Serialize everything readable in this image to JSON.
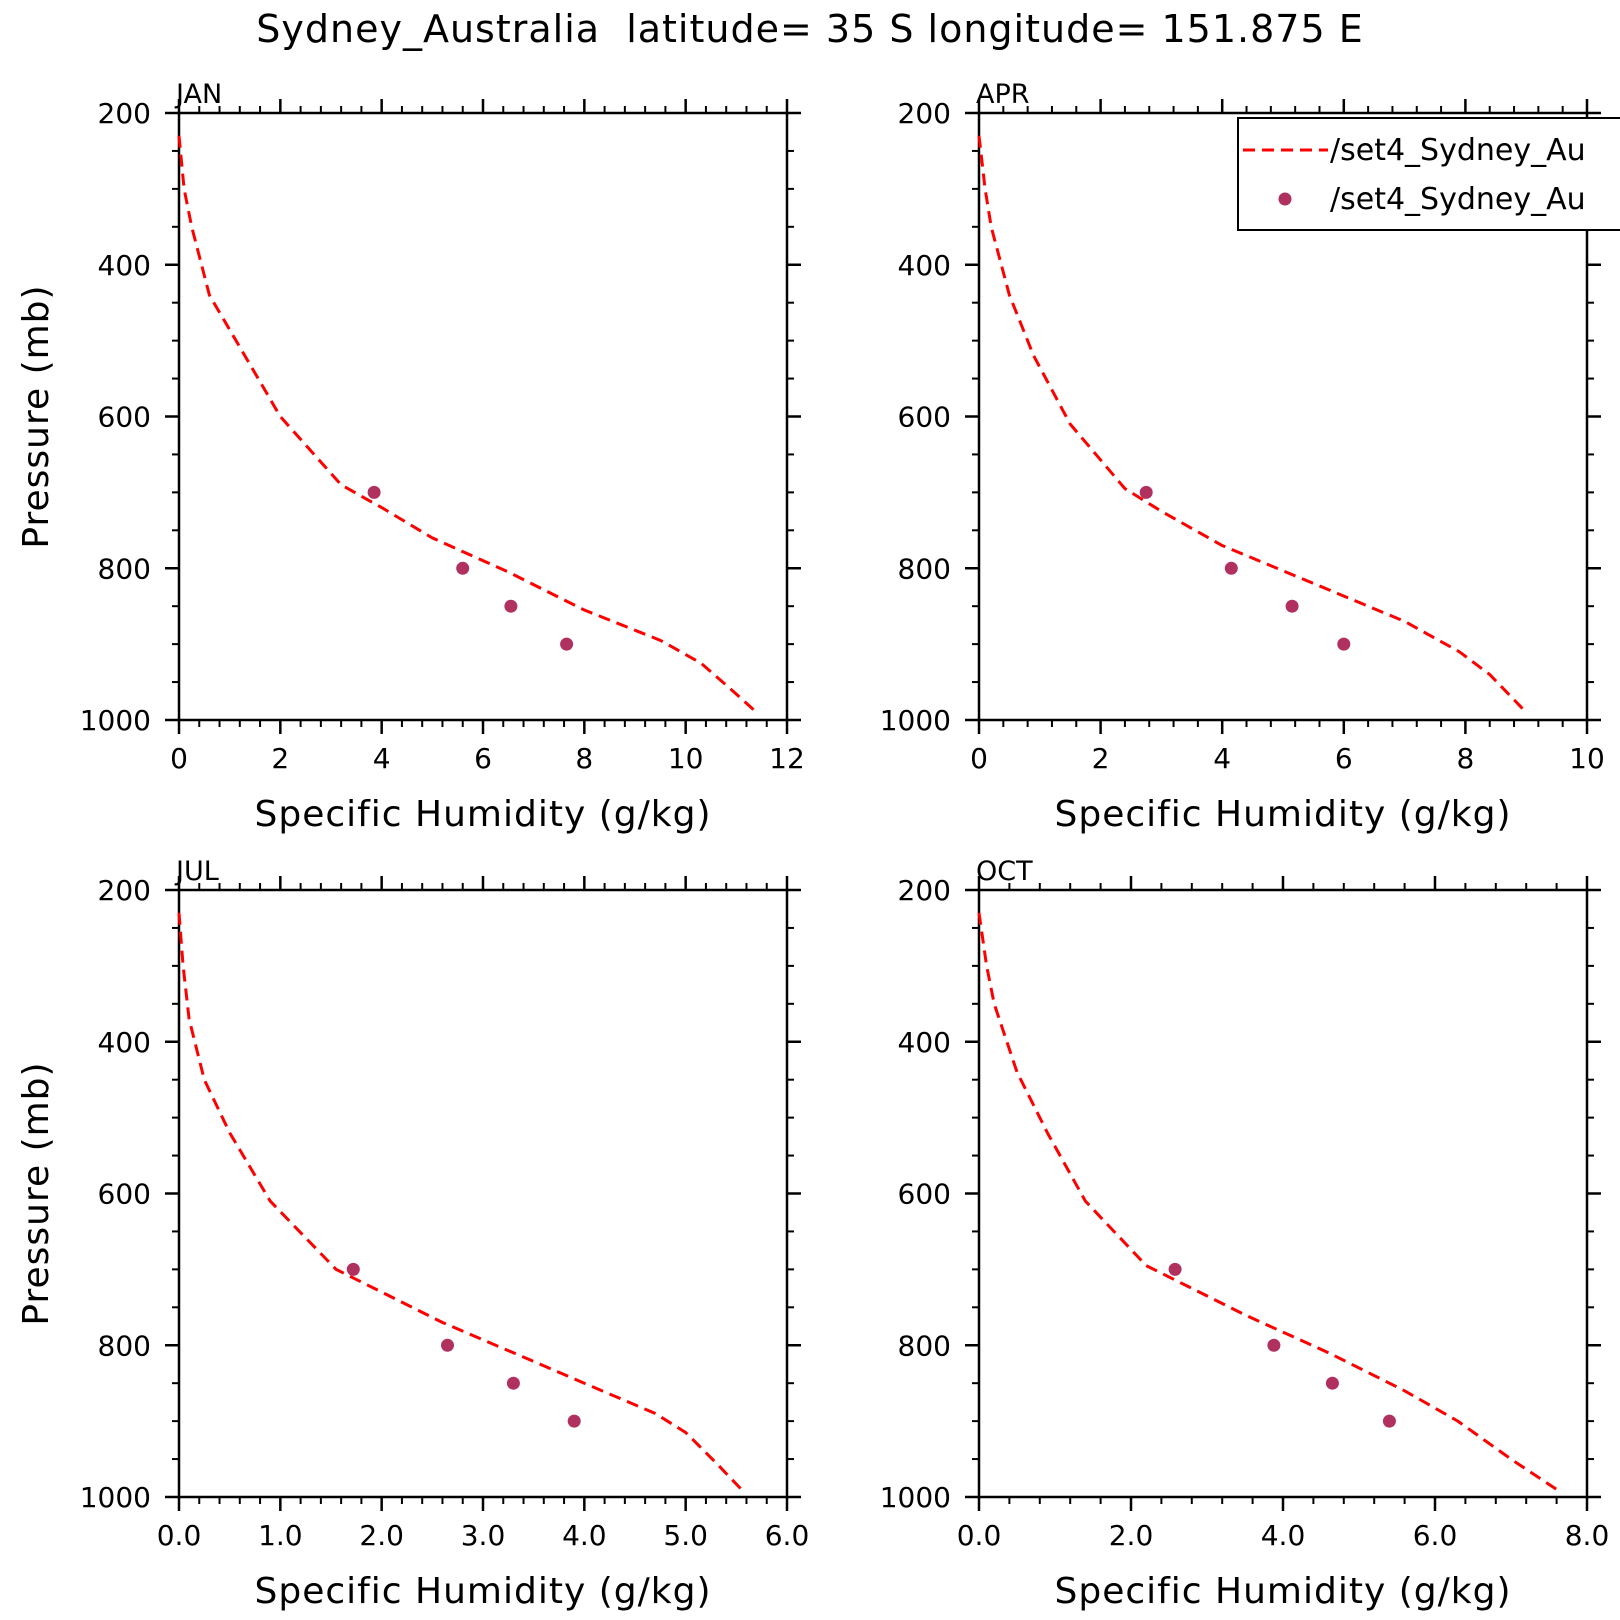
{
  "title": "Sydney_Australia  latitude= 35 S longitude= 151.875 E",
  "colors": {
    "model": "#ff0000",
    "obs": "#b03060"
  },
  "legend": [
    "/set4_Sydney_Au",
    "/set4_Sydney_Au"
  ],
  "chart_data": [
    {
      "type": "line",
      "panel": "JAN",
      "xlabel": "Specific Humidity (g/kg)",
      "ylabel": "Pressure (mb)",
      "xlim": [
        0,
        12
      ],
      "ylim": [
        200,
        1000
      ],
      "y_inverted": true,
      "xticks": [
        0,
        2,
        4,
        6,
        8,
        10,
        12
      ],
      "xtick_labels": [
        "0",
        "2",
        "4",
        "6",
        "8",
        "10",
        "12"
      ],
      "yticks": [
        200,
        400,
        600,
        800,
        1000
      ],
      "ytick_labels": [
        "200",
        "400",
        "600",
        "800",
        "1000"
      ],
      "series": [
        {
          "name": "/set4_Sydney_Au",
          "style": "dashed-line",
          "x": [
            0.0,
            0.1,
            0.25,
            0.6,
            1.3,
            2.0,
            3.2,
            4.0,
            5.0,
            6.5,
            8.0,
            9.5,
            10.3,
            10.9,
            11.4
          ],
          "y": [
            230,
            300,
            350,
            440,
            520,
            600,
            690,
            720,
            760,
            805,
            855,
            895,
            925,
            960,
            990
          ]
        },
        {
          "name": "/set4_Sydney_Au",
          "style": "markers",
          "x": [
            3.85,
            5.6,
            6.55,
            7.65
          ],
          "y": [
            700,
            800,
            850,
            900
          ]
        }
      ]
    },
    {
      "type": "line",
      "panel": "APR",
      "xlabel": "Specific Humidity (g/kg)",
      "ylabel": "",
      "xlim": [
        0,
        10
      ],
      "ylim": [
        200,
        1000
      ],
      "y_inverted": true,
      "xticks": [
        0,
        2,
        4,
        6,
        8,
        10
      ],
      "xtick_labels": [
        "0",
        "2",
        "4",
        "6",
        "8",
        "10"
      ],
      "yticks": [
        200,
        400,
        600,
        800,
        1000
      ],
      "ytick_labels": [
        "200",
        "400",
        "600",
        "800",
        "1000"
      ],
      "series": [
        {
          "name": "/set4_Sydney_Au",
          "style": "dashed-line",
          "x": [
            0.0,
            0.1,
            0.2,
            0.5,
            0.9,
            1.5,
            2.4,
            3.0,
            4.0,
            5.5,
            7.0,
            7.9,
            8.4,
            9.0
          ],
          "y": [
            230,
            300,
            350,
            440,
            520,
            610,
            695,
            725,
            770,
            820,
            870,
            910,
            940,
            990
          ]
        },
        {
          "name": "/set4_Sydney_Au",
          "style": "markers",
          "x": [
            2.75,
            4.15,
            5.15,
            6.0
          ],
          "y": [
            700,
            800,
            850,
            900
          ]
        }
      ]
    },
    {
      "type": "line",
      "panel": "JUL",
      "xlabel": "Specific Humidity (g/kg)",
      "ylabel": "Pressure (mb)",
      "xlim": [
        0,
        6
      ],
      "ylim": [
        200,
        1000
      ],
      "y_inverted": true,
      "xticks": [
        0,
        1,
        2,
        3,
        4,
        5,
        6
      ],
      "xtick_labels": [
        "0.0",
        "1.0",
        "2.0",
        "3.0",
        "4.0",
        "5.0",
        "6.0"
      ],
      "yticks": [
        200,
        400,
        600,
        800,
        1000
      ],
      "ytick_labels": [
        "200",
        "400",
        "600",
        "800",
        "1000"
      ],
      "series": [
        {
          "name": "/set4_Sydney_Au",
          "style": "dashed-line",
          "x": [
            0.0,
            0.04,
            0.1,
            0.25,
            0.5,
            0.9,
            1.55,
            2.0,
            2.6,
            3.3,
            4.0,
            4.7,
            5.0,
            5.3,
            5.55
          ],
          "y": [
            230,
            300,
            370,
            450,
            520,
            610,
            700,
            730,
            770,
            810,
            850,
            890,
            915,
            955,
            990
          ]
        },
        {
          "name": "/set4_Sydney_Au",
          "style": "markers",
          "x": [
            1.72,
            2.65,
            3.3,
            3.9
          ],
          "y": [
            700,
            800,
            850,
            900
          ]
        }
      ]
    },
    {
      "type": "line",
      "panel": "OCT",
      "xlabel": "Specific Humidity (g/kg)",
      "ylabel": "",
      "xlim": [
        0,
        8
      ],
      "ylim": [
        200,
        1000
      ],
      "y_inverted": true,
      "xticks": [
        0,
        2,
        4,
        6,
        8
      ],
      "xtick_labels": [
        "0.0",
        "2.0",
        "4.0",
        "6.0",
        "8.0"
      ],
      "yticks": [
        200,
        400,
        600,
        800,
        1000
      ],
      "ytick_labels": [
        "200",
        "400",
        "600",
        "800",
        "1000"
      ],
      "series": [
        {
          "name": "/set4_Sydney_Au",
          "style": "dashed-line",
          "x": [
            0.0,
            0.1,
            0.2,
            0.5,
            0.9,
            1.4,
            2.2,
            2.8,
            3.5,
            4.6,
            5.6,
            6.3,
            7.0,
            7.6
          ],
          "y": [
            230,
            300,
            350,
            440,
            520,
            610,
            695,
            725,
            760,
            810,
            860,
            900,
            950,
            990
          ]
        },
        {
          "name": "/set4_Sydney_Au",
          "style": "markers",
          "x": [
            2.58,
            3.88,
            4.65,
            5.4
          ],
          "y": [
            700,
            800,
            850,
            900
          ]
        }
      ]
    }
  ]
}
